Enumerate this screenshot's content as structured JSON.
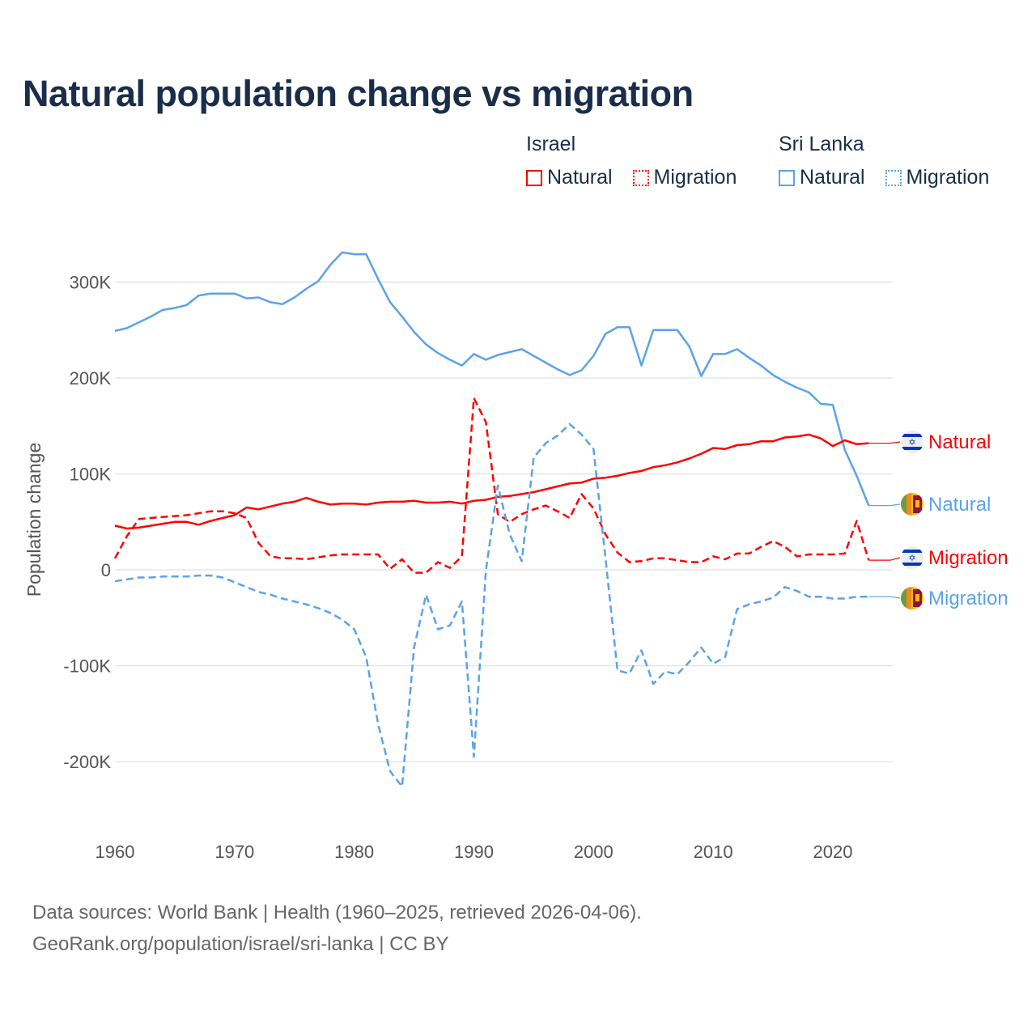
{
  "title": "Natural population change vs migration",
  "legend": [
    {
      "group": "Israel",
      "items": [
        {
          "label": "Natural",
          "color": "#ff0000",
          "style": "solid"
        },
        {
          "label": "Migration",
          "color": "#ff0000",
          "style": "dotted"
        }
      ]
    },
    {
      "group": "Sri Lanka",
      "items": [
        {
          "label": "Natural",
          "color": "#5ba3e8",
          "style": "solid"
        },
        {
          "label": "Migration",
          "color": "#5ba3e8",
          "style": "dotted"
        }
      ]
    }
  ],
  "footer": {
    "line1": "Data sources: World Bank | Health (1960–2025, retrieved 2026-04-06).",
    "line2": "GeoRank.org/population/israel/sri-lanka | CC BY"
  },
  "chart_data": {
    "type": "line",
    "title": "Natural population change vs migration",
    "xlabel": "",
    "ylabel": "Population change",
    "xlim": [
      1960,
      2025
    ],
    "ylim": [
      -260000,
      340000
    ],
    "x_ticks": [
      1960,
      1970,
      1980,
      1990,
      2000,
      2010,
      2020
    ],
    "y_ticks": [
      {
        "value": 300000,
        "label": "300K"
      },
      {
        "value": 200000,
        "label": "200K"
      },
      {
        "value": 100000,
        "label": "100K"
      },
      {
        "value": 0,
        "label": "0"
      },
      {
        "value": -100000,
        "label": "-100K"
      },
      {
        "value": -200000,
        "label": "-200K"
      }
    ],
    "grid": true,
    "x_start": 1960,
    "series": [
      {
        "name": "Sri Lanka Natural",
        "country": "Sri Lanka",
        "end_label": "Natural",
        "color": "#5ba3e8",
        "dashed": false,
        "flag": "sri-lanka",
        "values_k": [
          249,
          252,
          258,
          264,
          271,
          273,
          276,
          286,
          288,
          288,
          288,
          283,
          284,
          279,
          277,
          284,
          293,
          301,
          318,
          331,
          329,
          329,
          303,
          279,
          264,
          248,
          235,
          226,
          219,
          213,
          225,
          219,
          224,
          227,
          230,
          223,
          216,
          209,
          203,
          208,
          223,
          246,
          253,
          253,
          213,
          250,
          250,
          250,
          233,
          202,
          225,
          225,
          230,
          221,
          213,
          203,
          196,
          190,
          185,
          173,
          172,
          125,
          98,
          67
        ]
      },
      {
        "name": "Israel Natural",
        "country": "Israel",
        "end_label": "Natural",
        "color": "#ff0000",
        "dashed": false,
        "flag": "israel",
        "values_k": [
          46,
          43,
          44,
          46,
          48,
          50,
          50,
          47,
          51,
          54,
          57,
          65,
          63,
          66,
          69,
          71,
          75,
          71,
          68,
          69,
          69,
          68,
          70,
          71,
          71,
          72,
          70,
          70,
          71,
          69,
          72,
          73,
          76,
          77,
          79,
          81,
          84,
          87,
          90,
          91,
          95,
          96,
          98,
          101,
          103,
          107,
          109,
          112,
          116,
          121,
          127,
          126,
          130,
          131,
          134,
          134,
          138,
          139,
          141,
          137,
          129,
          135,
          131,
          132
        ]
      },
      {
        "name": "Israel Migration",
        "country": "Israel",
        "end_label": "Migration",
        "color": "#ff0000",
        "dashed": true,
        "flag": "israel",
        "values_k": [
          12,
          35,
          53,
          54,
          55,
          56,
          57,
          59,
          61,
          61,
          59,
          54,
          28,
          14,
          12,
          12,
          11,
          13,
          15,
          16,
          16,
          16,
          16,
          1,
          11,
          -3,
          -3,
          8,
          2,
          14,
          179,
          154,
          58,
          50,
          58,
          63,
          67,
          61,
          54,
          79,
          64,
          37,
          18,
          8,
          9,
          12,
          12,
          10,
          8,
          8,
          14,
          11,
          17,
          17,
          24,
          30,
          24,
          14,
          16,
          16,
          16,
          17,
          51,
          10
        ]
      },
      {
        "name": "Sri Lanka Migration",
        "country": "Sri Lanka",
        "end_label": "Migration",
        "color": "#5ba3e8",
        "dashed": true,
        "flag": "sri-lanka",
        "values_k": [
          -12,
          -10,
          -8,
          -8,
          -7,
          -7,
          -7,
          -6,
          -6,
          -8,
          -13,
          -18,
          -23,
          -26,
          -30,
          -33,
          -36,
          -40,
          -45,
          -52,
          -62,
          -91,
          -161,
          -210,
          -226,
          -81,
          -26,
          -62,
          -58,
          -33,
          -195,
          -1,
          88,
          37,
          9,
          117,
          132,
          140,
          152,
          141,
          126,
          12,
          -105,
          -108,
          -84,
          -119,
          -106,
          -109,
          -96,
          -81,
          -98,
          -91,
          -41,
          -36,
          -33,
          -29,
          -18,
          -22,
          -28,
          -28,
          -30,
          -30,
          -28,
          -28
        ]
      }
    ]
  }
}
